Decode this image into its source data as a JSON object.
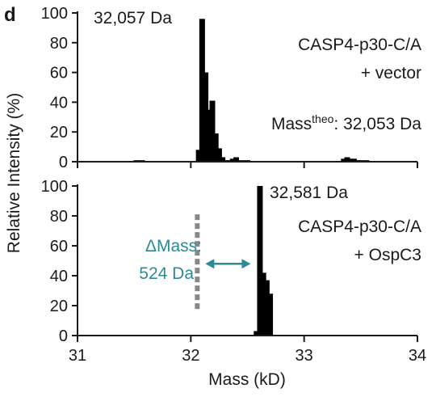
{
  "figure": {
    "panel_label": "d",
    "ylabel": "Relative Intensity (%)",
    "xlabel": "Mass (kD)",
    "colors": {
      "bars": "#000000",
      "axis": "#1a1a1a",
      "accent": "#2a8a96",
      "dashed_line": "#888888"
    }
  },
  "chart_data": [
    {
      "type": "bar",
      "panel": "top",
      "xlabel": "Mass (kD)",
      "ylabel": "Relative Intensity (%)",
      "xlim": [
        31,
        34
      ],
      "ylim": [
        0,
        100
      ],
      "yticks": [
        "0",
        "20",
        "40",
        "60",
        "80",
        "100"
      ],
      "peak_label": "32,057 Da",
      "sample_line1": "CASP4-p30-C/A",
      "sample_line2": "+ vector",
      "theo_label_main": "Mass",
      "theo_label_sup": "theo",
      "theo_label_value": ": 32,053 Da",
      "x": [
        31.52,
        31.57,
        32.07,
        32.1,
        32.13,
        32.16,
        32.19,
        32.22,
        32.25,
        32.28,
        32.31,
        32.34,
        32.37,
        32.4,
        32.45,
        32.5,
        33.35,
        33.38,
        33.41,
        33.44,
        33.47,
        33.5,
        33.55,
        33.6
      ],
      "values": [
        1,
        1,
        8,
        96,
        60,
        35,
        41,
        19,
        9,
        3,
        1,
        1,
        2,
        3,
        1,
        1,
        2,
        3,
        2,
        2,
        1,
        1,
        1,
        0.5
      ]
    },
    {
      "type": "bar",
      "panel": "bottom",
      "xlabel": "Mass (kD)",
      "ylabel": "Relative Intensity (%)",
      "xlim": [
        31,
        34
      ],
      "ylim": [
        0,
        100
      ],
      "xticks": [
        "31",
        "32",
        "33",
        "34"
      ],
      "yticks": [
        "0",
        "20",
        "40",
        "60",
        "80",
        "100"
      ],
      "peak_label": "32,581 Da",
      "sample_line1": "CASP4-p30-C/A",
      "sample_line2": "+ OspC3",
      "delta_label_line1": "ΔMass:",
      "delta_label_line2": "524 Da",
      "delta_reference_x": 32.057,
      "x": [
        32.58,
        32.61,
        32.64,
        32.67,
        32.7
      ],
      "values": [
        3,
        100,
        42,
        37,
        28
      ]
    }
  ]
}
